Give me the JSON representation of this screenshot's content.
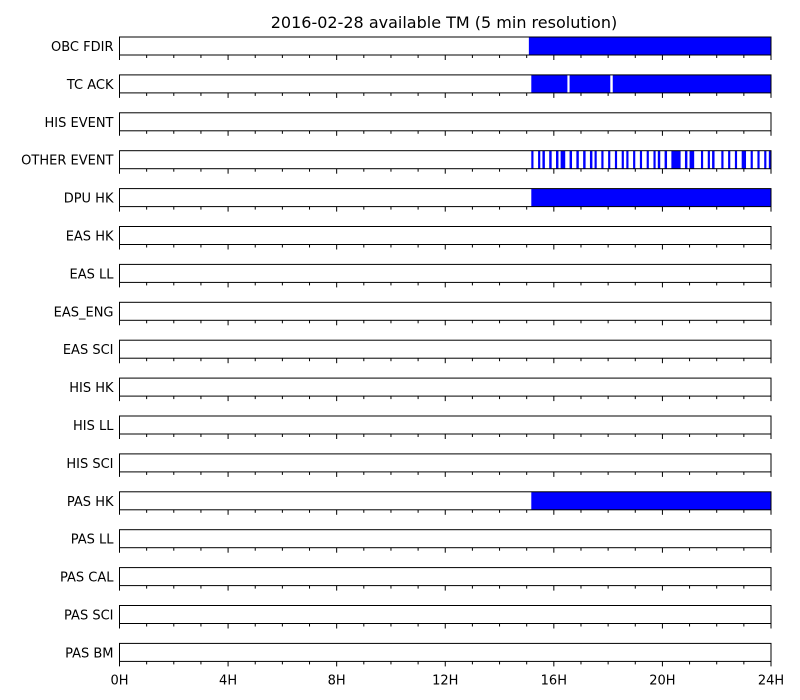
{
  "chart_data": {
    "type": "timeline",
    "title": "2016-02-28 available TM (5 min resolution)",
    "x_unit": "hours",
    "xlim": [
      0,
      24
    ],
    "x_ticks": [
      0,
      4,
      8,
      12,
      16,
      20,
      24
    ],
    "x_tick_labels": [
      "0H",
      "4H",
      "8H",
      "12H",
      "16H",
      "20H",
      "24H"
    ],
    "minor_tick_step_hours": 1,
    "fill_color": "#0000ff",
    "frame_color": "#000000",
    "rows": [
      {
        "label": "OBC FDIR",
        "intervals": [
          [
            15.08,
            24
          ]
        ]
      },
      {
        "label": "TC ACK",
        "intervals": [
          [
            15.17,
            16.5
          ],
          [
            16.58,
            18.08
          ],
          [
            18.17,
            24
          ]
        ]
      },
      {
        "label": "HIS EVENT",
        "intervals": []
      },
      {
        "label": "OTHER EVENT",
        "intervals": [
          [
            15.17,
            15.25
          ],
          [
            15.42,
            15.5
          ],
          [
            15.58,
            15.67
          ],
          [
            15.83,
            15.92
          ],
          [
            16.08,
            16.17
          ],
          [
            16.25,
            16.42
          ],
          [
            16.58,
            16.67
          ],
          [
            16.83,
            16.92
          ],
          [
            17.08,
            17.17
          ],
          [
            17.33,
            17.42
          ],
          [
            17.5,
            17.58
          ],
          [
            17.75,
            17.83
          ],
          [
            18.0,
            18.08
          ],
          [
            18.25,
            18.33
          ],
          [
            18.5,
            18.58
          ],
          [
            18.67,
            18.75
          ],
          [
            18.92,
            19.0
          ],
          [
            19.17,
            19.25
          ],
          [
            19.42,
            19.5
          ],
          [
            19.67,
            19.75
          ],
          [
            19.83,
            19.92
          ],
          [
            20.08,
            20.17
          ],
          [
            20.33,
            20.67
          ],
          [
            20.83,
            20.92
          ],
          [
            21.0,
            21.17
          ],
          [
            21.42,
            21.5
          ],
          [
            21.67,
            21.75
          ],
          [
            21.83,
            21.92
          ],
          [
            22.17,
            22.25
          ],
          [
            22.42,
            22.5
          ],
          [
            22.67,
            22.75
          ],
          [
            22.92,
            23.08
          ],
          [
            23.25,
            23.33
          ],
          [
            23.5,
            23.58
          ],
          [
            23.75,
            23.83
          ],
          [
            23.92,
            24.0
          ]
        ]
      },
      {
        "label": "DPU HK",
        "intervals": [
          [
            15.17,
            24
          ]
        ]
      },
      {
        "label": "EAS HK",
        "intervals": []
      },
      {
        "label": "EAS LL",
        "intervals": []
      },
      {
        "label": "EAS_ENG",
        "intervals": []
      },
      {
        "label": "EAS SCI",
        "intervals": []
      },
      {
        "label": "HIS HK",
        "intervals": []
      },
      {
        "label": "HIS LL",
        "intervals": []
      },
      {
        "label": "HIS SCI",
        "intervals": []
      },
      {
        "label": "PAS HK",
        "intervals": [
          [
            15.17,
            24
          ]
        ]
      },
      {
        "label": "PAS LL",
        "intervals": []
      },
      {
        "label": "PAS CAL",
        "intervals": []
      },
      {
        "label": "PAS SCI",
        "intervals": []
      },
      {
        "label": "PAS BM",
        "intervals": []
      }
    ]
  }
}
